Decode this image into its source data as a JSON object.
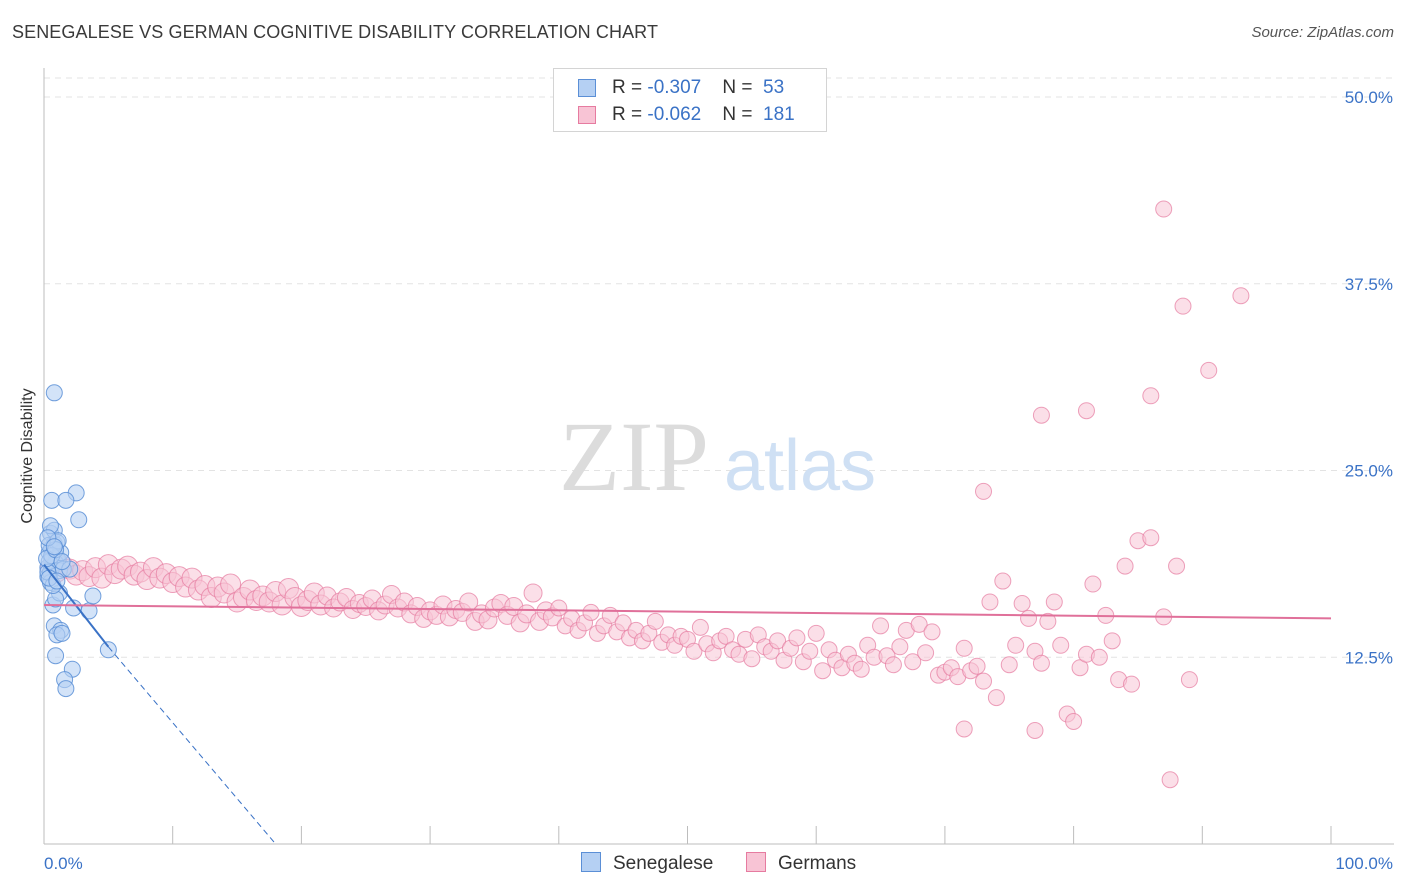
{
  "header": {
    "title": "SENEGALESE VS GERMAN COGNITIVE DISABILITY CORRELATION CHART",
    "source": "Source: ZipAtlas.com"
  },
  "watermark": {
    "zip": "ZIP",
    "atlas": "atlas"
  },
  "colors": {
    "blue": "#5b8fd6",
    "blue_fill": "#b5d0f3",
    "blue_line": "#3a72c6",
    "pink": "#e67ba0",
    "pink_fill": "#f8c4d5",
    "pink_line": "#e0709a",
    "tick_text": "#3a72c6"
  },
  "legend": {
    "rows": [
      {
        "r_label": "R = ",
        "r_value": "-0.307",
        "n_label": "N = ",
        "n_value": "53"
      },
      {
        "r_label": "R = ",
        "r_value": "-0.062",
        "n_label": "N = ",
        "n_value": "181"
      }
    ]
  },
  "bottom_legend": [
    "Senegalese",
    "Germans"
  ],
  "chart_data": {
    "type": "scatter",
    "title": "SENEGALESE VS GERMAN COGNITIVE DISABILITY CORRELATION CHART",
    "xlabel": "",
    "ylabel": "Cognitive Disability",
    "xlim": [
      0,
      100
    ],
    "ylim": [
      0,
      50
    ],
    "x_tick_labels": [
      "0.0%",
      "100.0%"
    ],
    "y_ticks": [
      12.5,
      25.0,
      37.5,
      50.0
    ],
    "y_tick_labels": [
      "12.5%",
      "25.0%",
      "37.5%",
      "50.0%"
    ],
    "grid": true,
    "legend_position": "top-center",
    "series": [
      {
        "name": "Senegalese",
        "R": -0.307,
        "N": 53,
        "trend": {
          "x": [
            0,
            5
          ],
          "y": [
            18.7,
            13.2
          ],
          "extended_to": [
            18,
            0
          ]
        },
        "points": [
          [
            0.3,
            18.5
          ],
          [
            0.4,
            19.5
          ],
          [
            0.5,
            20.8
          ],
          [
            0.6,
            19.0
          ],
          [
            0.7,
            18.6
          ],
          [
            0.8,
            20.1
          ],
          [
            1.0,
            19.2
          ],
          [
            0.3,
            17.9
          ],
          [
            0.5,
            18.2
          ],
          [
            0.6,
            19.8
          ],
          [
            0.8,
            21.0
          ],
          [
            1.1,
            19.0
          ],
          [
            0.4,
            20.0
          ],
          [
            0.9,
            18.8
          ],
          [
            1.2,
            18.3
          ],
          [
            0.5,
            17.5
          ],
          [
            0.7,
            16.0
          ],
          [
            1.3,
            19.5
          ],
          [
            1.5,
            18.4
          ],
          [
            0.6,
            23.0
          ],
          [
            0.8,
            30.2
          ],
          [
            2.0,
            18.4
          ],
          [
            2.5,
            23.5
          ],
          [
            1.7,
            23.0
          ],
          [
            2.7,
            21.7
          ],
          [
            1.0,
            20.2
          ],
          [
            1.2,
            16.8
          ],
          [
            0.9,
            16.4
          ],
          [
            2.3,
            15.8
          ],
          [
            3.5,
            15.6
          ],
          [
            3.8,
            16.6
          ],
          [
            0.8,
            14.6
          ],
          [
            1.3,
            14.3
          ],
          [
            1.0,
            14.0
          ],
          [
            1.4,
            14.1
          ],
          [
            0.9,
            12.6
          ],
          [
            5.0,
            13.0
          ],
          [
            2.2,
            11.7
          ],
          [
            1.6,
            11.0
          ],
          [
            1.7,
            10.4
          ],
          [
            0.4,
            18.9
          ],
          [
            0.6,
            19.3
          ],
          [
            0.3,
            18.2
          ],
          [
            1.1,
            20.3
          ],
          [
            0.7,
            17.3
          ],
          [
            0.5,
            21.3
          ],
          [
            0.2,
            19.1
          ],
          [
            0.9,
            19.7
          ],
          [
            1.4,
            18.9
          ],
          [
            0.3,
            20.5
          ],
          [
            0.8,
            19.9
          ],
          [
            0.4,
            17.8
          ],
          [
            1.0,
            17.6
          ]
        ]
      },
      {
        "name": "Germans",
        "R": -0.062,
        "N": 181,
        "trend": {
          "x": [
            0,
            100
          ],
          "y": [
            16.0,
            15.1
          ]
        },
        "points": [
          [
            0.5,
            18.5
          ],
          [
            1.0,
            18.2
          ],
          [
            1.5,
            18.6
          ],
          [
            2.0,
            18.4
          ],
          [
            2.5,
            18.0
          ],
          [
            3.0,
            18.3
          ],
          [
            3.5,
            17.9
          ],
          [
            4.0,
            18.5
          ],
          [
            4.5,
            17.8
          ],
          [
            5.0,
            18.7
          ],
          [
            5.5,
            18.1
          ],
          [
            6.0,
            18.4
          ],
          [
            6.5,
            18.6
          ],
          [
            7.0,
            18.0
          ],
          [
            7.5,
            18.2
          ],
          [
            8.0,
            17.7
          ],
          [
            8.5,
            18.5
          ],
          [
            9.0,
            17.8
          ],
          [
            9.5,
            18.1
          ],
          [
            10.0,
            17.5
          ],
          [
            10.5,
            17.9
          ],
          [
            11.0,
            17.2
          ],
          [
            11.5,
            17.8
          ],
          [
            12.0,
            17.0
          ],
          [
            12.5,
            17.3
          ],
          [
            13.0,
            16.5
          ],
          [
            13.5,
            17.2
          ],
          [
            14.0,
            16.8
          ],
          [
            14.5,
            17.4
          ],
          [
            15.0,
            16.2
          ],
          [
            15.5,
            16.5
          ],
          [
            16.0,
            17.0
          ],
          [
            16.5,
            16.3
          ],
          [
            17.0,
            16.6
          ],
          [
            17.5,
            16.2
          ],
          [
            18.0,
            16.9
          ],
          [
            18.5,
            16.0
          ],
          [
            19.0,
            17.1
          ],
          [
            19.5,
            16.5
          ],
          [
            20.0,
            15.9
          ],
          [
            20.5,
            16.3
          ],
          [
            21.0,
            16.8
          ],
          [
            21.5,
            16.0
          ],
          [
            22.0,
            16.6
          ],
          [
            22.5,
            15.8
          ],
          [
            23.0,
            16.2
          ],
          [
            23.5,
            16.5
          ],
          [
            24.0,
            15.7
          ],
          [
            24.5,
            16.1
          ],
          [
            25.0,
            15.9
          ],
          [
            25.5,
            16.4
          ],
          [
            26.0,
            15.6
          ],
          [
            26.5,
            16.0
          ],
          [
            27.0,
            16.7
          ],
          [
            27.5,
            15.8
          ],
          [
            28.0,
            16.2
          ],
          [
            28.5,
            15.4
          ],
          [
            29.0,
            15.9
          ],
          [
            29.5,
            15.1
          ],
          [
            30.0,
            15.6
          ],
          [
            30.5,
            15.3
          ],
          [
            31.0,
            16.0
          ],
          [
            31.5,
            15.2
          ],
          [
            32.0,
            15.7
          ],
          [
            32.5,
            15.5
          ],
          [
            33.0,
            16.2
          ],
          [
            33.5,
            14.9
          ],
          [
            34.0,
            15.4
          ],
          [
            34.5,
            15.0
          ],
          [
            35.0,
            15.8
          ],
          [
            35.5,
            16.1
          ],
          [
            36.0,
            15.3
          ],
          [
            36.5,
            15.9
          ],
          [
            37.0,
            14.8
          ],
          [
            37.5,
            15.4
          ],
          [
            38.0,
            16.8
          ],
          [
            38.5,
            14.9
          ],
          [
            39.0,
            15.6
          ],
          [
            39.5,
            15.2
          ],
          [
            40.0,
            15.8
          ],
          [
            40.5,
            14.6
          ],
          [
            41.0,
            15.1
          ],
          [
            41.5,
            14.3
          ],
          [
            42.0,
            14.8
          ],
          [
            42.5,
            15.5
          ],
          [
            43.0,
            14.1
          ],
          [
            43.5,
            14.6
          ],
          [
            44.0,
            15.3
          ],
          [
            44.5,
            14.2
          ],
          [
            45.0,
            14.8
          ],
          [
            45.5,
            13.8
          ],
          [
            46.0,
            14.3
          ],
          [
            46.5,
            13.6
          ],
          [
            47.0,
            14.1
          ],
          [
            47.5,
            14.9
          ],
          [
            48.0,
            13.5
          ],
          [
            48.5,
            14.0
          ],
          [
            49.0,
            13.3
          ],
          [
            49.5,
            13.9
          ],
          [
            50.0,
            13.7
          ],
          [
            50.5,
            12.9
          ],
          [
            51.0,
            14.5
          ],
          [
            51.5,
            13.4
          ],
          [
            52.0,
            12.8
          ],
          [
            52.5,
            13.6
          ],
          [
            53.0,
            13.9
          ],
          [
            53.5,
            13.0
          ],
          [
            54.0,
            12.7
          ],
          [
            54.5,
            13.7
          ],
          [
            55.0,
            12.4
          ],
          [
            55.5,
            14.0
          ],
          [
            56.0,
            13.2
          ],
          [
            56.5,
            12.9
          ],
          [
            57.0,
            13.6
          ],
          [
            57.5,
            12.3
          ],
          [
            58.0,
            13.1
          ],
          [
            58.5,
            13.8
          ],
          [
            59.0,
            12.2
          ],
          [
            59.5,
            12.9
          ],
          [
            60.0,
            14.1
          ],
          [
            60.5,
            11.6
          ],
          [
            61.0,
            13.0
          ],
          [
            61.5,
            12.3
          ],
          [
            62.0,
            11.8
          ],
          [
            62.5,
            12.7
          ],
          [
            63.0,
            12.1
          ],
          [
            63.5,
            11.7
          ],
          [
            64.0,
            13.3
          ],
          [
            64.5,
            12.5
          ],
          [
            65.0,
            14.6
          ],
          [
            65.5,
            12.6
          ],
          [
            66.0,
            12.0
          ],
          [
            66.5,
            13.2
          ],
          [
            67.0,
            14.3
          ],
          [
            67.5,
            12.2
          ],
          [
            68.0,
            14.7
          ],
          [
            68.5,
            12.8
          ],
          [
            69.0,
            14.2
          ],
          [
            69.5,
            11.3
          ],
          [
            70.0,
            11.5
          ],
          [
            70.5,
            11.8
          ],
          [
            71.0,
            11.2
          ],
          [
            71.5,
            13.1
          ],
          [
            72.0,
            11.6
          ],
          [
            72.5,
            11.9
          ],
          [
            73.0,
            10.9
          ],
          [
            73.5,
            16.2
          ],
          [
            74.0,
            9.8
          ],
          [
            74.5,
            17.6
          ],
          [
            75.0,
            12.0
          ],
          [
            75.5,
            13.3
          ],
          [
            76.0,
            16.1
          ],
          [
            76.5,
            15.1
          ],
          [
            77.0,
            12.9
          ],
          [
            77.5,
            12.1
          ],
          [
            78.0,
            14.9
          ],
          [
            78.5,
            16.2
          ],
          [
            79.0,
            13.3
          ],
          [
            79.5,
            8.7
          ],
          [
            80.0,
            8.2
          ],
          [
            80.5,
            11.8
          ],
          [
            81.0,
            12.7
          ],
          [
            81.5,
            17.4
          ],
          [
            82.0,
            12.5
          ],
          [
            82.5,
            15.3
          ],
          [
            83.0,
            13.6
          ],
          [
            83.5,
            11.0
          ],
          [
            84.0,
            18.6
          ],
          [
            84.5,
            10.7
          ],
          [
            85.0,
            20.3
          ],
          [
            86.0,
            20.5
          ],
          [
            87.0,
            15.2
          ],
          [
            88.0,
            18.6
          ],
          [
            89.0,
            11.0
          ],
          [
            73.0,
            23.6
          ],
          [
            77.5,
            28.7
          ],
          [
            81.0,
            29.0
          ],
          [
            86.0,
            30.0
          ],
          [
            88.5,
            36.0
          ],
          [
            90.5,
            31.7
          ],
          [
            93.0,
            36.7
          ],
          [
            87.0,
            42.5
          ],
          [
            87.5,
            4.3
          ],
          [
            71.5,
            7.7
          ],
          [
            77.0,
            7.6
          ]
        ]
      }
    ]
  }
}
